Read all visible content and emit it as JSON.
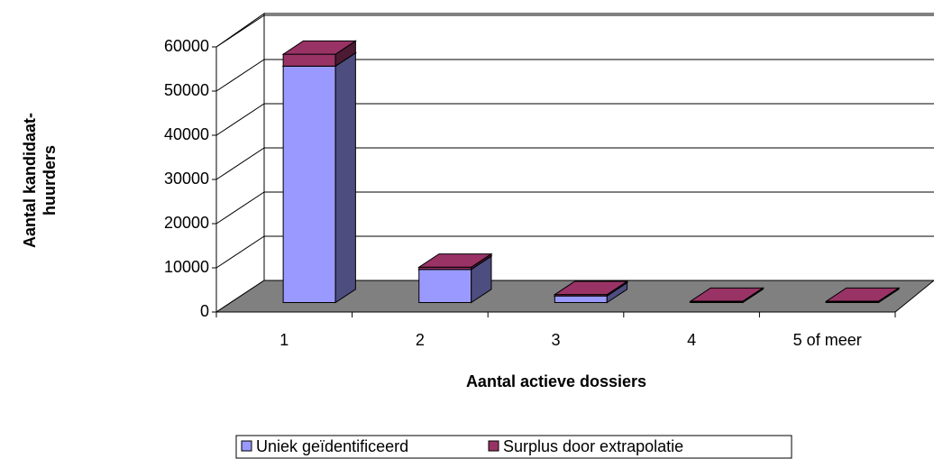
{
  "chart_data": {
    "type": "bar3d_stacked",
    "ylabel": [
      "Aantal kandidaat-",
      "huurders"
    ],
    "xlabel": "Aantal actieve dossiers",
    "categories": [
      "1",
      "2",
      "3",
      "4",
      "5 of meer"
    ],
    "series": [
      {
        "name": "Uniek geïdentificeerd",
        "color": "#9999ff",
        "values": [
          53500,
          7500,
          1500,
          100,
          100
        ]
      },
      {
        "name": "Surplus door extrapolatie",
        "color": "#993366",
        "values": [
          2700,
          500,
          300,
          200,
          200
        ]
      }
    ],
    "ylim": [
      0,
      60000
    ],
    "yticks": [
      0,
      10000,
      20000,
      30000,
      40000,
      50000,
      60000
    ],
    "grid": true
  }
}
